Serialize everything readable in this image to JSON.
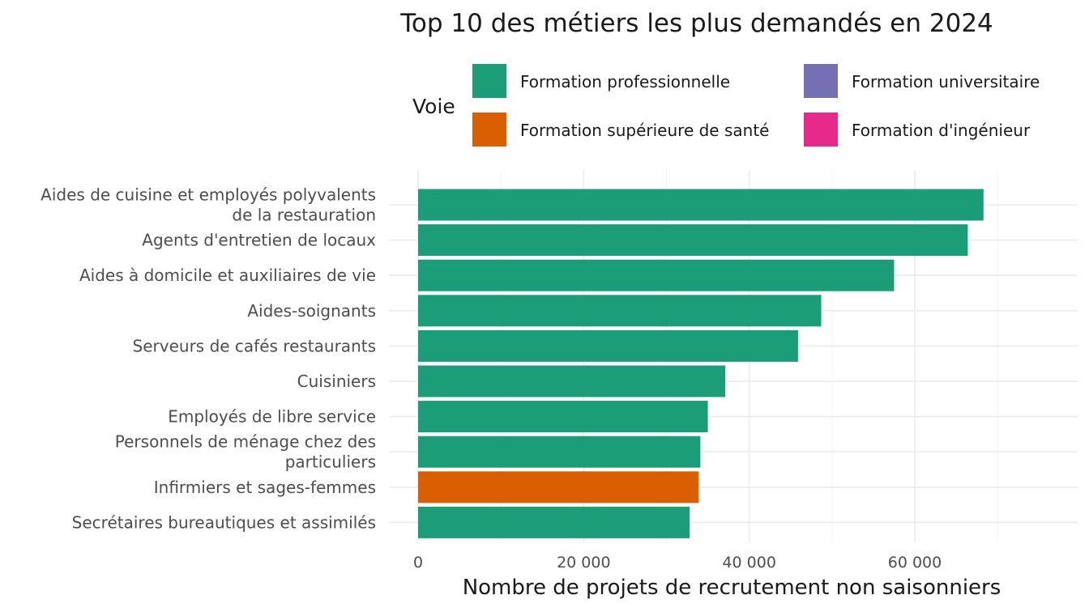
{
  "chart_data": {
    "type": "bar",
    "orientation": "horizontal",
    "title": "Top 10 des métiers les plus demandés en 2024",
    "xlabel": "Nombre de projets de recrutement non saisonniers",
    "ylabel": "",
    "xlim": [
      0,
      70000
    ],
    "xticks": [
      0,
      20000,
      40000,
      60000
    ],
    "xtick_labels": [
      "0",
      "20 000",
      "40 000",
      "60 000"
    ],
    "grid": true,
    "legend": {
      "title": "Voie",
      "position": "top",
      "entries": [
        {
          "label": "Formation professionnelle",
          "color": "#1b9e77"
        },
        {
          "label": "Formation universitaire",
          "color": "#7570b3"
        },
        {
          "label": "Formation supérieure de santé",
          "color": "#d95f02"
        },
        {
          "label": "Formation d'ingénieur",
          "color": "#e7298a"
        }
      ]
    },
    "categories": [
      "Aides de cuisine et employés polyvalents de la restauration",
      "Agents d'entretien de locaux",
      "Aides à domicile et auxiliaires de vie",
      "Aides-soignants",
      "Serveurs de cafés restaurants",
      "Cuisiniers",
      "Employés de libre service",
      "Personnels de ménage chez des particuliers",
      "Infirmiers et sages-femmes",
      "Secrétaires bureautiques et assimilés"
    ],
    "category_lines": [
      [
        "Aides de cuisine et employés polyvalents",
        "de la restauration"
      ],
      [
        "Agents d'entretien de locaux"
      ],
      [
        "Aides à domicile et auxiliaires de vie"
      ],
      [
        "Aides-soignants"
      ],
      [
        "Serveurs de cafés restaurants"
      ],
      [
        "Cuisiniers"
      ],
      [
        "Employés de libre service"
      ],
      [
        "Personnels de ménage chez des",
        "particuliers"
      ],
      [
        "Infirmiers et sages-femmes"
      ],
      [
        "Secrétaires bureautiques et assimilés"
      ]
    ],
    "values": [
      68300,
      66400,
      57500,
      48700,
      45900,
      37100,
      35000,
      34100,
      33900,
      32800
    ],
    "voie": [
      "Formation professionnelle",
      "Formation professionnelle",
      "Formation professionnelle",
      "Formation professionnelle",
      "Formation professionnelle",
      "Formation professionnelle",
      "Formation professionnelle",
      "Formation professionnelle",
      "Formation supérieure de santé",
      "Formation professionnelle"
    ]
  }
}
